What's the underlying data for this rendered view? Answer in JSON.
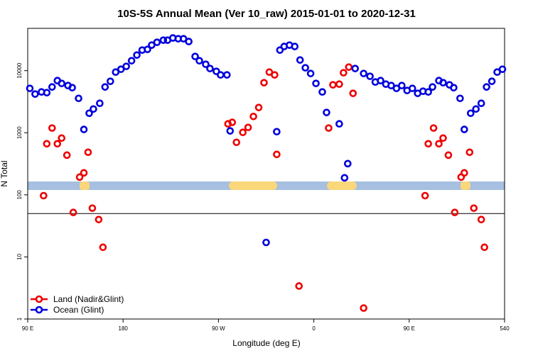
{
  "chart_data": {
    "type": "scatter",
    "title": "10S-5S Annual Mean (Ver 10_raw)   2015-01-01 to 2020-12-31",
    "x_label": "Longitude (deg E)",
    "y_label": "N Total",
    "log_y": true,
    "legend": "bottom-left",
    "hline": 50,
    "xlim": [
      90,
      540
    ],
    "xticks": [
      {
        "value": 90,
        "label": "90 E"
      },
      180,
      {
        "value": 270,
        "label": "90 W"
      },
      {
        "value": 360,
        "label": "0"
      },
      {
        "value": 450,
        "label": "90 E"
      },
      540
    ],
    "ylim": [
      1,
      48000
    ],
    "yticks": [
      1,
      10,
      100,
      1000,
      10000
    ],
    "series": [
      {
        "name": "Land (Nadir&Glint)",
        "color": "#ee0000",
        "x": [
          105,
          108,
          113,
          118,
          122,
          127,
          133,
          139,
          143,
          147,
          151,
          157,
          161,
          279,
          283,
          287,
          293,
          298,
          303,
          308,
          313,
          318,
          323,
          325,
          346,
          374,
          378,
          384,
          388,
          393,
          397,
          407,
          465,
          468,
          473,
          478,
          482,
          487,
          493,
          499,
          502,
          507,
          511,
          518,
          521
        ],
        "values": [
          97,
          665,
          1190,
          665,
          820,
          436,
          52,
          193,
          226,
          485,
          61,
          40,
          14.3,
          1390,
          1470,
          701,
          1014,
          1218,
          1830,
          2550,
          6400,
          9480,
          8540,
          448,
          3.4,
          1190,
          5910,
          6060,
          9250,
          11410,
          4310,
          1.5,
          97,
          665,
          1190,
          665,
          820,
          436,
          52,
          193,
          226,
          485,
          61,
          40,
          14.3
        ]
      },
      {
        "name": "Ocean (Glint)",
        "color": "#0000dd",
        "x": [
          92,
          97,
          103,
          108,
          113,
          118,
          122,
          128,
          132,
          138,
          143,
          148,
          152,
          158,
          163,
          168,
          173,
          178,
          183,
          188,
          193,
          198,
          203,
          207,
          212,
          218,
          222,
          227,
          232,
          237,
          242,
          248,
          252,
          258,
          262,
          268,
          272,
          278,
          281,
          315,
          325,
          328,
          332,
          337,
          342,
          347,
          352,
          357,
          362,
          368,
          372,
          384,
          389,
          392,
          399,
          407,
          413,
          418,
          423,
          428,
          433,
          438,
          443,
          448,
          453,
          458,
          463,
          468,
          472,
          478,
          482,
          488,
          492,
          498,
          502,
          508,
          513,
          518,
          523,
          528,
          533,
          538
        ],
        "values": [
          5180,
          4200,
          4540,
          4420,
          5460,
          6910,
          6230,
          5750,
          5320,
          3580,
          1130,
          2060,
          2410,
          2980,
          5460,
          6740,
          9480,
          10540,
          11720,
          14450,
          17830,
          21430,
          22020,
          25780,
          28640,
          30990,
          30990,
          33560,
          32660,
          32660,
          29430,
          16940,
          14450,
          12670,
          10820,
          9740,
          8540,
          8540,
          1070,
          17.1,
          1040,
          21430,
          24490,
          25780,
          24490,
          14830,
          11120,
          9000,
          6230,
          4540,
          2120,
          1390,
          188,
          318,
          10820,
          9000,
          8110,
          6560,
          6910,
          6060,
          5750,
          5180,
          5750,
          4790,
          5180,
          4310,
          4660,
          4540,
          5460,
          6910,
          6400,
          5910,
          5320,
          3580,
          1130,
          2060,
          2410,
          2980,
          5460,
          6740,
          9480,
          10540
        ]
      }
    ]
  }
}
